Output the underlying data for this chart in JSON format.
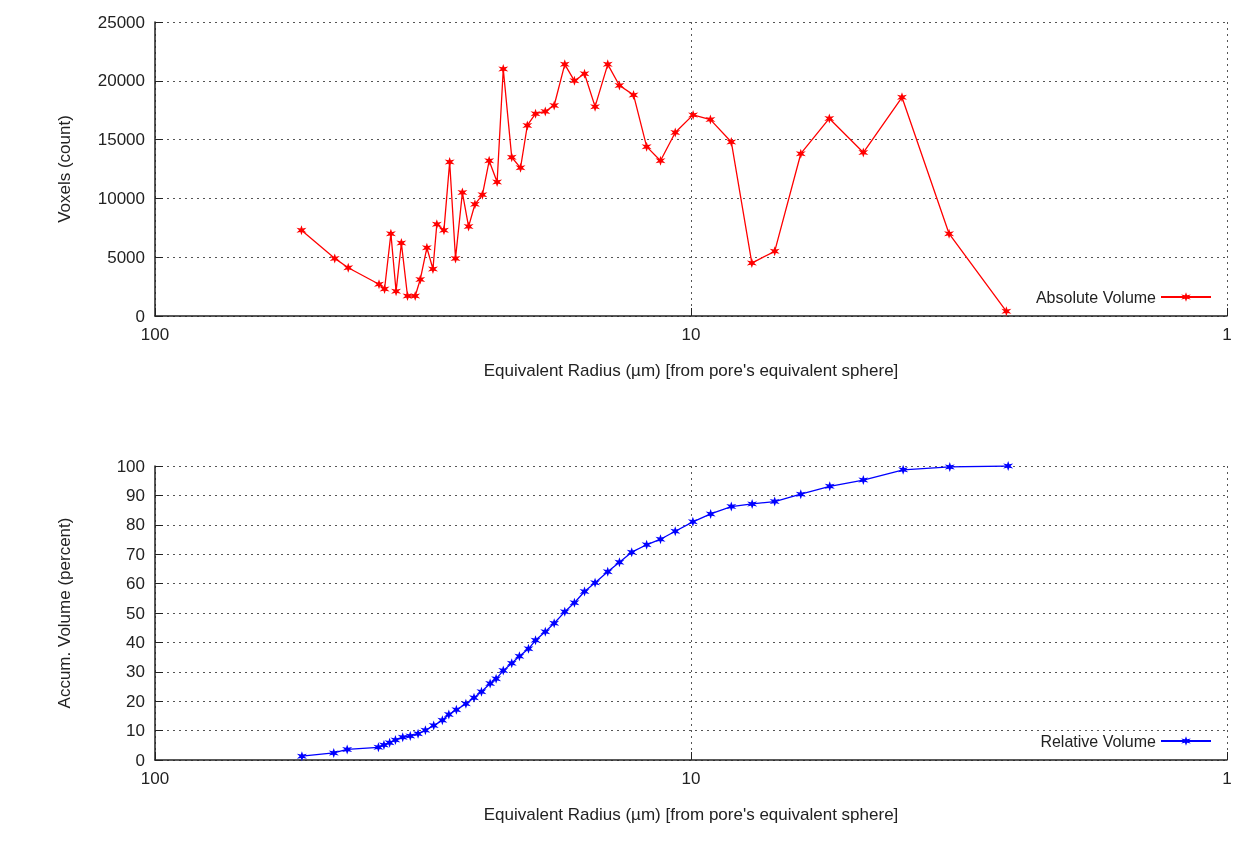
{
  "chart_data": [
    {
      "type": "line",
      "xlabel": "Equivalent Radius (µm) [from pore's equivalent sphere]",
      "ylabel": "Voxels (count)",
      "log": "x",
      "xlim": [
        100,
        1
      ],
      "xticks": [
        100,
        10,
        1
      ],
      "ylim": [
        0,
        25000
      ],
      "yticks": [
        0,
        5000,
        10000,
        15000,
        20000,
        25000
      ],
      "grid": true,
      "legend": "bottom right",
      "marker": "cross",
      "line_style": "solid",
      "series": [
        {
          "name": "Absolute Volume",
          "color": "#ff0000",
          "x": [
            53.3,
            46.2,
            43.6,
            38.2,
            37.3,
            36.3,
            35.5,
            34.7,
            33.8,
            32.7,
            32.0,
            31.1,
            30.3,
            29.8,
            28.9,
            28.2,
            27.5,
            26.7,
            26.0,
            25.3,
            24.5,
            23.8,
            23.0,
            22.4,
            21.6,
            20.8,
            20.2,
            19.5,
            18.7,
            18.0,
            17.2,
            16.5,
            15.8,
            15.1,
            14.3,
            13.6,
            12.8,
            12.1,
            11.4,
            10.7,
            9.91,
            9.2,
            8.41,
            7.7,
            6.98,
            6.24,
            5.52,
            4.77,
            4.04,
            3.3,
            2.58
          ],
          "values": [
            7300,
            4900,
            4100,
            2700,
            2300,
            7000,
            2100,
            6200,
            1700,
            1700,
            3100,
            5800,
            4000,
            7800,
            7300,
            13100,
            4900,
            10500,
            7600,
            9500,
            10300,
            13200,
            11400,
            21000,
            13500,
            12600,
            16200,
            17200,
            17400,
            17900,
            21400,
            20000,
            20600,
            17800,
            21400,
            19600,
            18800,
            14400,
            13200,
            15600,
            17100,
            16700,
            14800,
            4500,
            5500,
            13800,
            16800,
            13900,
            18600,
            7000,
            400
          ]
        }
      ]
    },
    {
      "type": "line",
      "xlabel": "Equivalent Radius (µm) [from pore's equivalent sphere]",
      "ylabel": "Accum. Volume (percent)",
      "log": "x",
      "xlim": [
        100,
        1
      ],
      "xticks": [
        100,
        10,
        1
      ],
      "ylim": [
        0,
        100
      ],
      "yticks": [
        0,
        10,
        20,
        30,
        40,
        50,
        60,
        70,
        80,
        90,
        100
      ],
      "grid": true,
      "legend": "bottom right",
      "marker": "cross",
      "line_style": "solid",
      "series": [
        {
          "name": "Relative Volume",
          "color": "#0000ff",
          "x": [
            53.2,
            46.4,
            43.8,
            38.3,
            37.4,
            36.5,
            35.6,
            34.5,
            33.4,
            32.3,
            31.3,
            30.2,
            29.1,
            28.3,
            27.4,
            26.3,
            25.4,
            24.6,
            23.7,
            23.1,
            22.4,
            21.6,
            20.9,
            20.1,
            19.5,
            18.7,
            18.0,
            17.2,
            16.5,
            15.8,
            15.1,
            14.3,
            13.6,
            12.9,
            12.1,
            11.4,
            10.7,
            9.92,
            9.19,
            8.41,
            7.69,
            6.98,
            6.24,
            5.51,
            4.77,
            4.02,
            3.29,
            2.56
          ],
          "values": [
            1.3,
            2.4,
            3.6,
            4.3,
            5.1,
            5.9,
            6.8,
            7.7,
            8.2,
            8.9,
            10.1,
            11.7,
            13.5,
            15.5,
            17.1,
            19.1,
            21.2,
            23.2,
            26.0,
            27.6,
            30.4,
            32.9,
            35.3,
            37.8,
            40.7,
            43.6,
            46.5,
            50.4,
            53.5,
            57.3,
            60.3,
            64.0,
            67.3,
            70.7,
            73.2,
            75.1,
            77.8,
            81.0,
            83.7,
            86.2,
            87.1,
            87.9,
            90.4,
            93.1,
            95.2,
            98.7,
            99.7,
            100.0
          ]
        }
      ]
    }
  ]
}
